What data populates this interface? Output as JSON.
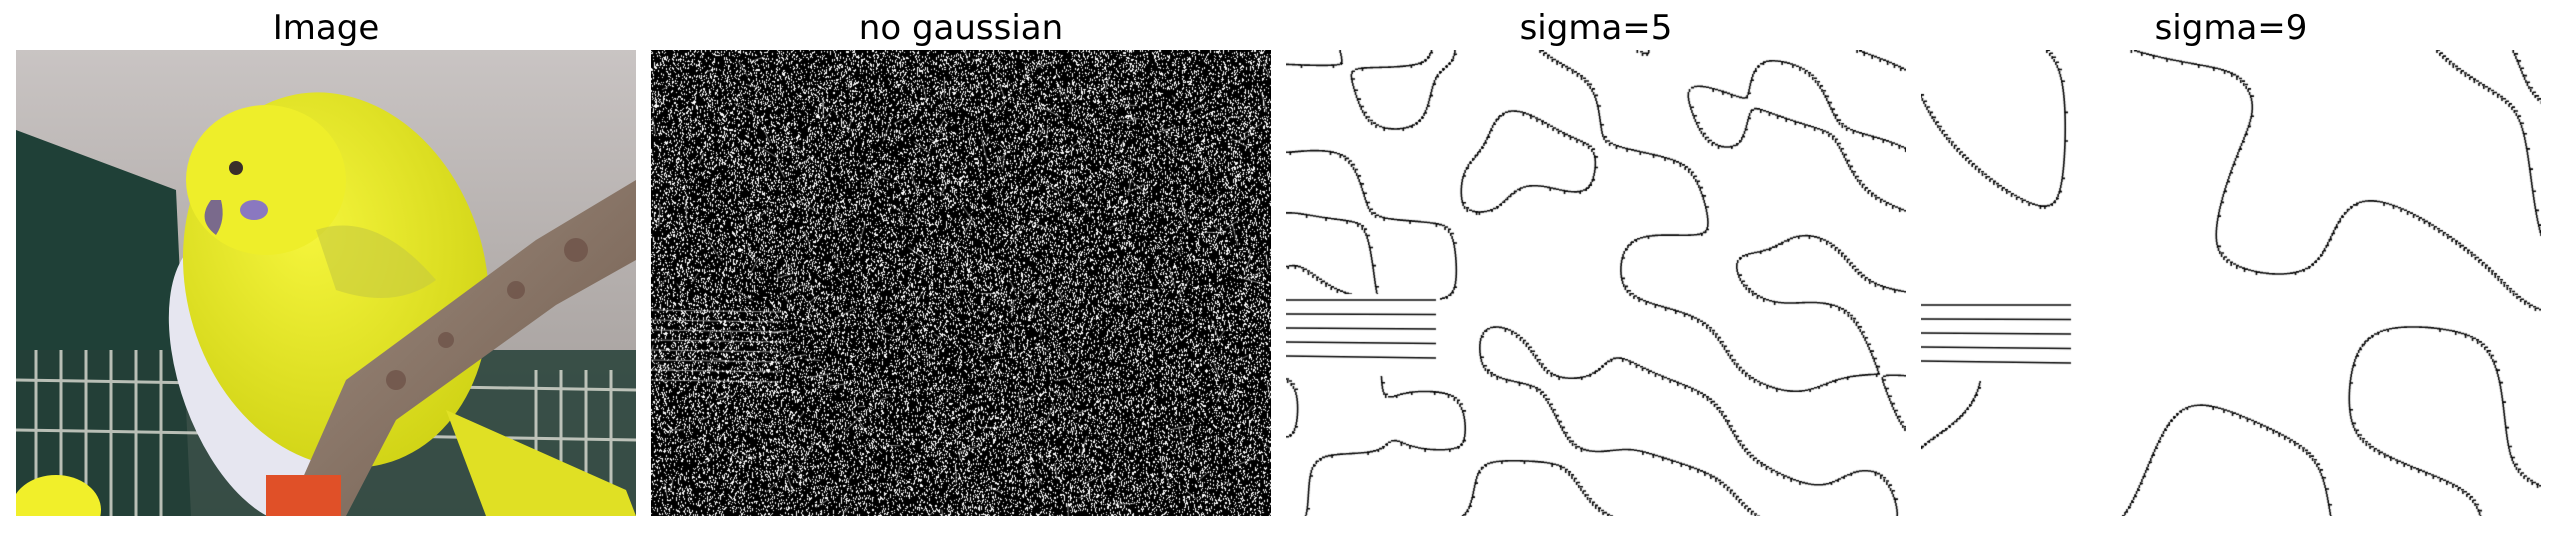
{
  "panels": [
    {
      "title": "Image"
    },
    {
      "title": "no gaussian"
    },
    {
      "title": "sigma=5"
    },
    {
      "title": "sigma=9"
    }
  ],
  "colors": {
    "background": "#ffffff",
    "bird_yellow": "#e8ea1e",
    "bird_white": "#e6e6f0",
    "wall_grey": "#b8b3b0",
    "cage_green": "#1f4037",
    "perch_brown": "#8a7466",
    "edge_line": "#000000"
  },
  "icons": [
    "parakeet-photo",
    "edge-noise-map",
    "edge-contours-sigma5",
    "edge-contours-sigma9"
  ]
}
